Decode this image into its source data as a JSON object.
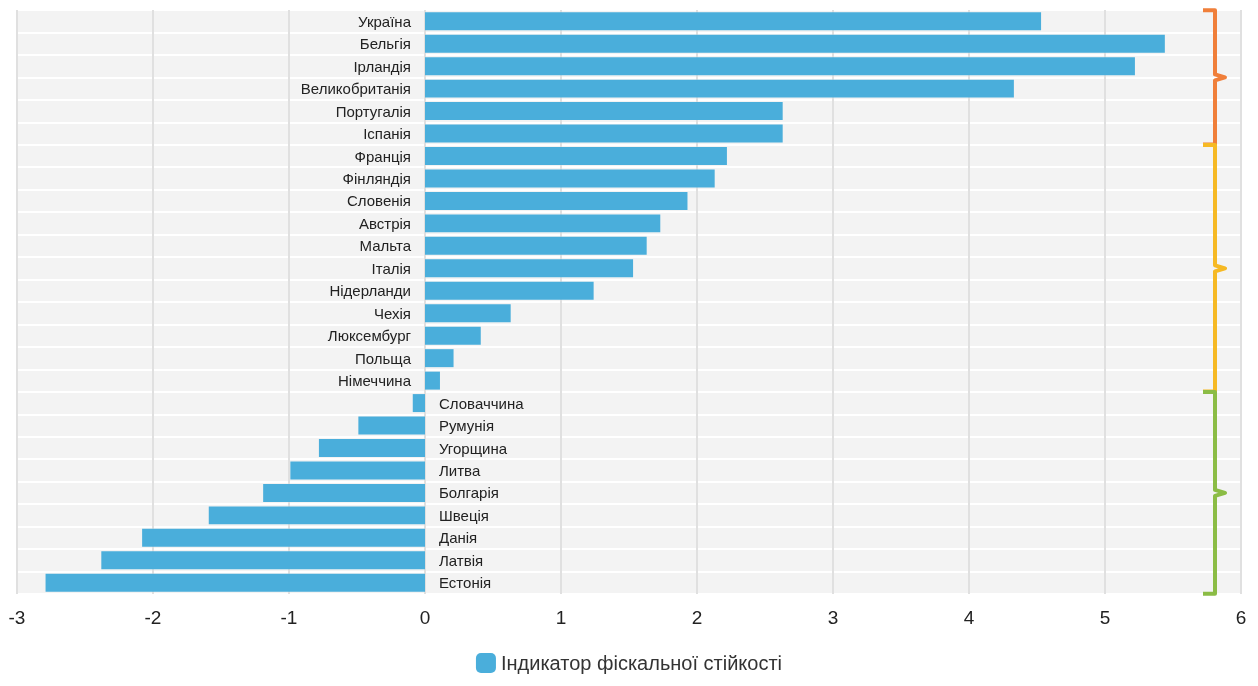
{
  "chart_data": {
    "type": "bar",
    "orientation": "horizontal",
    "categories": [
      "Україна",
      "Бельгія",
      "Ірландія",
      "Великобританія",
      "Португалія",
      "Іспанія",
      "Франція",
      "Фінляндія",
      "Словенія",
      "Австрія",
      "Мальта",
      "Італія",
      "Нідерланди",
      "Чехія",
      "Люксембург",
      "Польща",
      "Німеччина",
      "Словаччина",
      "Румунія",
      "Угорщина",
      "Литва",
      "Болгарія",
      "Швеція",
      "Данія",
      "Латвія",
      "Естонія"
    ],
    "series": [
      {
        "name": "Індикатор фіскальної стійкості",
        "color": "#4aaedb",
        "values": [
          4.53,
          5.44,
          5.22,
          4.33,
          2.63,
          2.63,
          2.22,
          2.13,
          1.93,
          1.73,
          1.63,
          1.53,
          1.24,
          0.63,
          0.41,
          0.21,
          0.11,
          -0.09,
          -0.49,
          -0.78,
          -0.99,
          -1.19,
          -1.59,
          -2.08,
          -2.38,
          -2.79
        ]
      }
    ],
    "xlim": [
      -3,
      6
    ],
    "xticks": [
      -3,
      -2,
      -1,
      0,
      1,
      2,
      3,
      4,
      5,
      6
    ],
    "grid": "x",
    "legend": "bottom"
  }
}
